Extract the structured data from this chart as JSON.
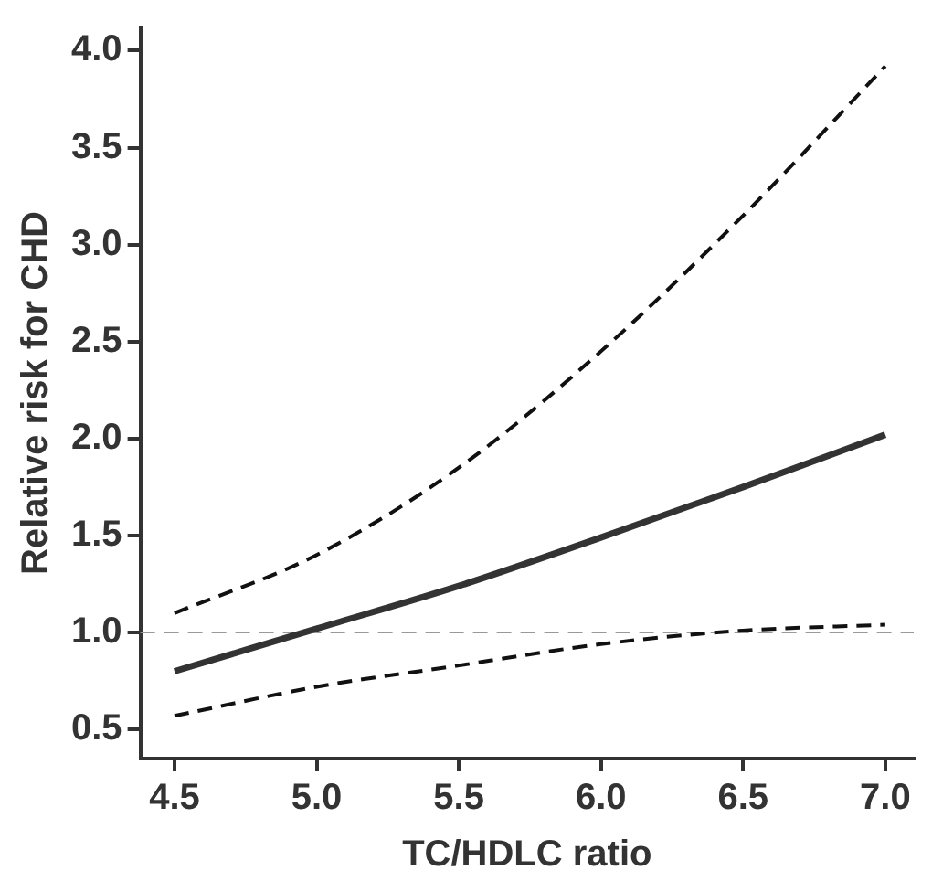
{
  "chart_data": {
    "type": "line",
    "xlabel": "TC/HDLC ratio",
    "ylabel": "Relative risk for CHD",
    "xlim": [
      4.38,
      7.1
    ],
    "ylim": [
      0.35,
      4.12
    ],
    "xticks": [
      {
        "value": 4.5,
        "label": "4.5"
      },
      {
        "value": 5,
        "label": "5.0"
      },
      {
        "value": 5.5,
        "label": "5.5"
      },
      {
        "value": 6,
        "label": "6.0"
      },
      {
        "value": 6.5,
        "label": "6.5"
      },
      {
        "value": 7,
        "label": "7.0"
      }
    ],
    "yticks": [
      {
        "value": 0.5,
        "label": "0.5"
      },
      {
        "value": 1,
        "label": "1.0"
      },
      {
        "value": 1.5,
        "label": "1.5"
      },
      {
        "value": 2,
        "label": "2.0"
      },
      {
        "value": 2.5,
        "label": "2.5"
      },
      {
        "value": 3,
        "label": "3.0"
      },
      {
        "value": 3.5,
        "label": "3.5"
      },
      {
        "value": 4,
        "label": "4.0"
      }
    ],
    "x": [
      4.5,
      5,
      5.5,
      6,
      6.5,
      7
    ],
    "series": [
      {
        "color": "#333333",
        "values": [
          0.8,
          1.02,
          1.24,
          1.49,
          1.75,
          2.02
        ],
        "line_style": "solid"
      },
      {
        "color": "#111111",
        "values": [
          1.1,
          1.4,
          1.85,
          2.45,
          3.15,
          3.92
        ],
        "line_style": "dashed"
      },
      {
        "color": "#111111",
        "values": [
          0.57,
          0.72,
          0.83,
          0.94,
          1.01,
          1.04
        ],
        "line_style": "dashed"
      }
    ],
    "ref_lines": [
      {
        "axis": "y",
        "value": 1,
        "color": "#999999",
        "line_style": "dashed"
      }
    ],
    "marker": "none",
    "legend": false,
    "grid": false
  }
}
